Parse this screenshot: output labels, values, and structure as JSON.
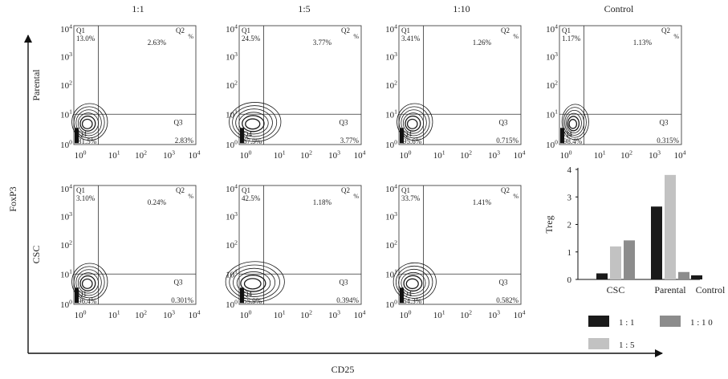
{
  "figure": {
    "column_titles": [
      "1:1",
      "1:5",
      "1:10",
      "Control"
    ],
    "row_labels": [
      "Parental",
      "CSC"
    ],
    "x_axis_label": "CD25",
    "y_axis_label": "FoxP3"
  },
  "chart_data": [
    {
      "type": "contour-grid",
      "axis_ticks": [
        {
          "base": "10",
          "exp": "0"
        },
        {
          "base": "10",
          "exp": "1"
        },
        {
          "base": "10",
          "exp": "2"
        },
        {
          "base": "10",
          "exp": "3"
        },
        {
          "base": "10",
          "exp": "4"
        }
      ],
      "quadrant_names": {
        "q1": "Q1",
        "q2": "Q2",
        "q3": "Q3",
        "q4": "Q4",
        "percent": "%"
      },
      "panels": [
        {
          "row": 0,
          "col": 0,
          "q1": "13.0%",
          "q2": "2.63%",
          "q3": "2.83%",
          "q4": "81.5%",
          "q4_name": "Q4"
        },
        {
          "row": 0,
          "col": 1,
          "q1": "24.5%",
          "q2": "3.77%",
          "q3": "3.77%",
          "q4": "67.9%",
          "q4_name": "Q4"
        },
        {
          "row": 0,
          "col": 2,
          "q1": "3.41%",
          "q2": "1.26%",
          "q3": "0.715%",
          "q4": "95.6%",
          "q4_name": "Q4"
        },
        {
          "row": 0,
          "col": 3,
          "q1": "1.17%",
          "q2": "1.13%",
          "q3": "0.315%",
          "q4": "98.4%",
          "q4_name": "Q4"
        },
        {
          "row": 1,
          "col": 0,
          "q1": "3.10%",
          "q2": "0.24%",
          "q3": "0.301%",
          "q4": "96.4%",
          "q4_name": "Q1"
        },
        {
          "row": 1,
          "col": 1,
          "q1": "42.5%",
          "q2": "1.18%",
          "q3": "0.394%",
          "q4": "55.9%",
          "q4_name": "Q4"
        },
        {
          "row": 1,
          "col": 2,
          "q1": "33.7%",
          "q2": "1.41%",
          "q3": "0.582%",
          "q4": "64.3%",
          "q4_name": "Q4"
        }
      ]
    },
    {
      "type": "bar",
      "ylabel": "Treg",
      "ylim": [
        0,
        4
      ],
      "yticks": [
        "0",
        "1",
        "2",
        "3",
        "4"
      ],
      "categories": [
        "CSC",
        "Parental",
        "Control"
      ],
      "series": [
        {
          "name": "1 : 1",
          "color": "#1a1a1a",
          "values": [
            0.22,
            2.65,
            0.15
          ]
        },
        {
          "name": "1 : 5",
          "color": "#c2c2c2",
          "values": [
            1.2,
            3.8,
            null
          ]
        },
        {
          "name": "1 : 1 0",
          "color": "#8c8c8c",
          "values": [
            1.42,
            0.27,
            null
          ]
        }
      ],
      "legend_placement": "bottom-right"
    }
  ]
}
